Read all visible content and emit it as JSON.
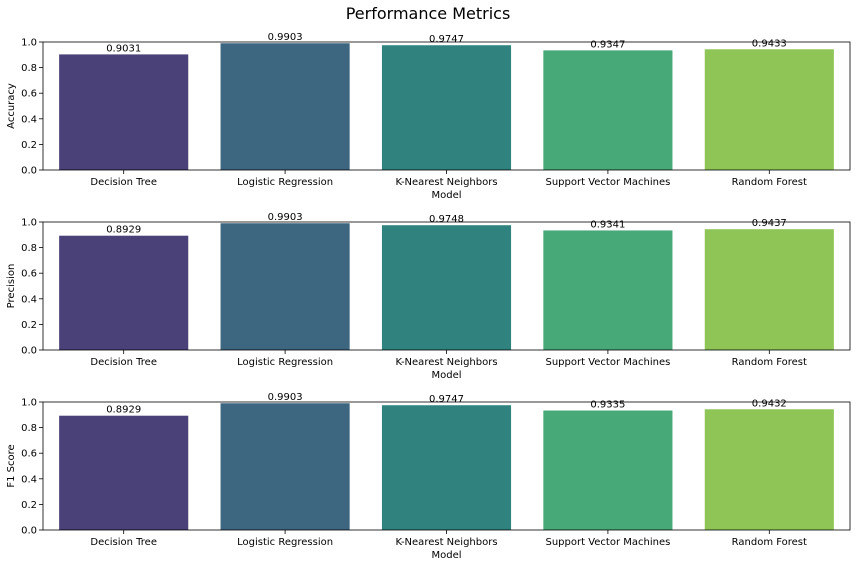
{
  "figure": {
    "title": "Performance Metrics"
  },
  "chart_data": [
    {
      "type": "bar",
      "categories": [
        "Decision Tree",
        "Logistic Regression",
        "K-Nearest Neighbors",
        "Support Vector Machines",
        "Random Forest"
      ],
      "values": [
        0.9031,
        0.9903,
        0.9747,
        0.9347,
        0.9433
      ],
      "value_labels": [
        "0.9031",
        "0.9903",
        "0.9747",
        "0.9347",
        "0.9433"
      ],
      "xlabel": "Model",
      "ylabel": "Accuracy",
      "ylim": [
        0,
        1.0
      ],
      "yticks": [
        "0.0",
        "0.2",
        "0.4",
        "0.6",
        "0.8",
        "1.0"
      ],
      "grid": false
    },
    {
      "type": "bar",
      "categories": [
        "Decision Tree",
        "Logistic Regression",
        "K-Nearest Neighbors",
        "Support Vector Machines",
        "Random Forest"
      ],
      "values": [
        0.8929,
        0.9903,
        0.9748,
        0.9341,
        0.9437
      ],
      "value_labels": [
        "0.8929",
        "0.9903",
        "0.9748",
        "0.9341",
        "0.9437"
      ],
      "xlabel": "Model",
      "ylabel": "Precision",
      "ylim": [
        0,
        1.0
      ],
      "yticks": [
        "0.0",
        "0.2",
        "0.4",
        "0.6",
        "0.8",
        "1.0"
      ],
      "grid": false
    },
    {
      "type": "bar",
      "categories": [
        "Decision Tree",
        "Logistic Regression",
        "K-Nearest Neighbors",
        "Support Vector Machines",
        "Random Forest"
      ],
      "values": [
        0.8929,
        0.9903,
        0.9747,
        0.9335,
        0.9432
      ],
      "value_labels": [
        "0.8929",
        "0.9903",
        "0.9747",
        "0.9335",
        "0.9432"
      ],
      "xlabel": "Model",
      "ylabel": "F1 Score",
      "ylim": [
        0,
        1.0
      ],
      "yticks": [
        "0.0",
        "0.2",
        "0.4",
        "0.6",
        "0.8",
        "1.0"
      ],
      "grid": false
    }
  ],
  "colors": {
    "bars": [
      "#4a4179",
      "#3d6680",
      "#2f827d",
      "#47a878",
      "#8fc557"
    ],
    "axes": "#000000",
    "background": "#ffffff"
  }
}
